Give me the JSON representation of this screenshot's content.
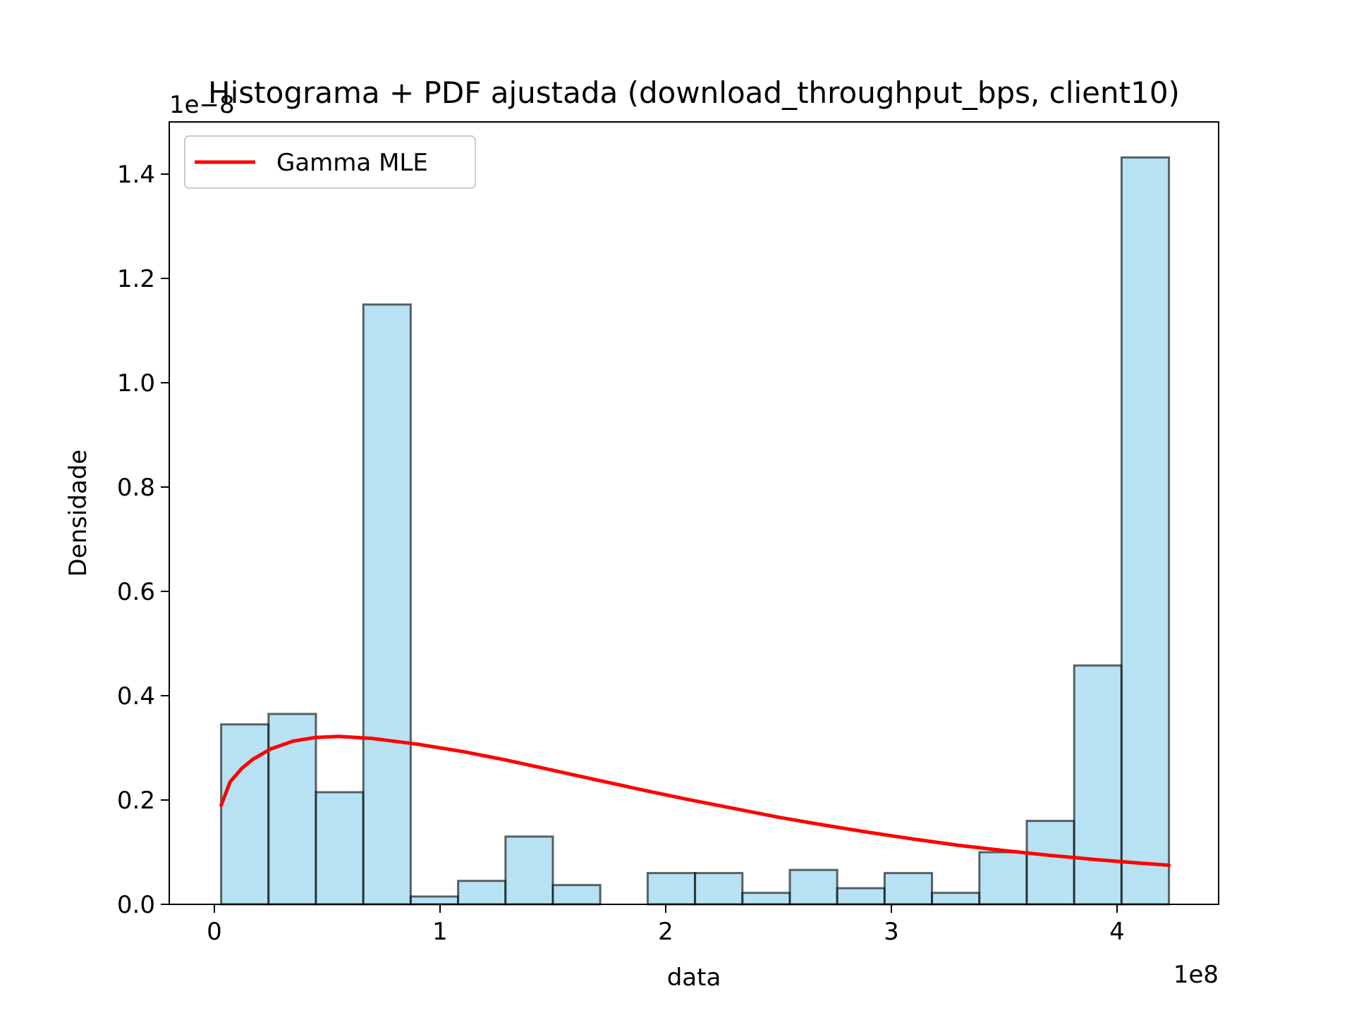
{
  "chart_data": {
    "type": "bar",
    "title": "Histograma + PDF ajustada (download_throughput_bps, client10)",
    "xlabel": "data",
    "ylabel": "Densidade",
    "x_offset_text": "1e8",
    "y_offset_text": "1e−8",
    "xlim": [
      -0.2,
      4.45
    ],
    "ylim": [
      0,
      1.5
    ],
    "x_ticks": [
      0,
      1,
      2,
      3,
      4
    ],
    "y_ticks": [
      0.0,
      0.2,
      0.4,
      0.6,
      0.8,
      1.0,
      1.2,
      1.4
    ],
    "x_tick_labels": [
      "0",
      "1",
      "2",
      "3",
      "4"
    ],
    "y_tick_labels": [
      "0.0",
      "0.2",
      "0.4",
      "0.6",
      "0.8",
      "1.0",
      "1.2",
      "1.4"
    ],
    "bar_color": "#87CEEB",
    "bar_edge_color": "#000000",
    "histogram": {
      "bin_edges": [
        0.03,
        0.24,
        0.45,
        0.66,
        0.87,
        1.08,
        1.29,
        1.5,
        1.71,
        1.92,
        2.13,
        2.34,
        2.55,
        2.76,
        2.97,
        3.18,
        3.39,
        3.6,
        3.81,
        4.02,
        4.23
      ],
      "values": [
        0.345,
        0.365,
        0.215,
        1.15,
        0.015,
        0.045,
        0.13,
        0.037,
        0.0,
        0.06,
        0.06,
        0.022,
        0.066,
        0.031,
        0.06,
        0.022,
        0.1,
        0.16,
        0.458,
        1.432
      ]
    },
    "series": [
      {
        "name": "Gamma MLE",
        "color": "#ff0000",
        "x": [
          0.03,
          0.07,
          0.12,
          0.17,
          0.25,
          0.35,
          0.45,
          0.55,
          0.7,
          0.9,
          1.1,
          1.3,
          1.5,
          1.7,
          1.9,
          2.1,
          2.3,
          2.5,
          2.7,
          2.9,
          3.1,
          3.3,
          3.5,
          3.7,
          3.9,
          4.1,
          4.23
        ],
        "y": [
          0.19,
          0.235,
          0.26,
          0.278,
          0.298,
          0.313,
          0.32,
          0.322,
          0.318,
          0.307,
          0.293,
          0.276,
          0.257,
          0.238,
          0.219,
          0.201,
          0.184,
          0.167,
          0.152,
          0.138,
          0.125,
          0.113,
          0.103,
          0.094,
          0.086,
          0.079,
          0.075
        ]
      }
    ],
    "legend": {
      "position": "upper left"
    },
    "grid": false
  }
}
